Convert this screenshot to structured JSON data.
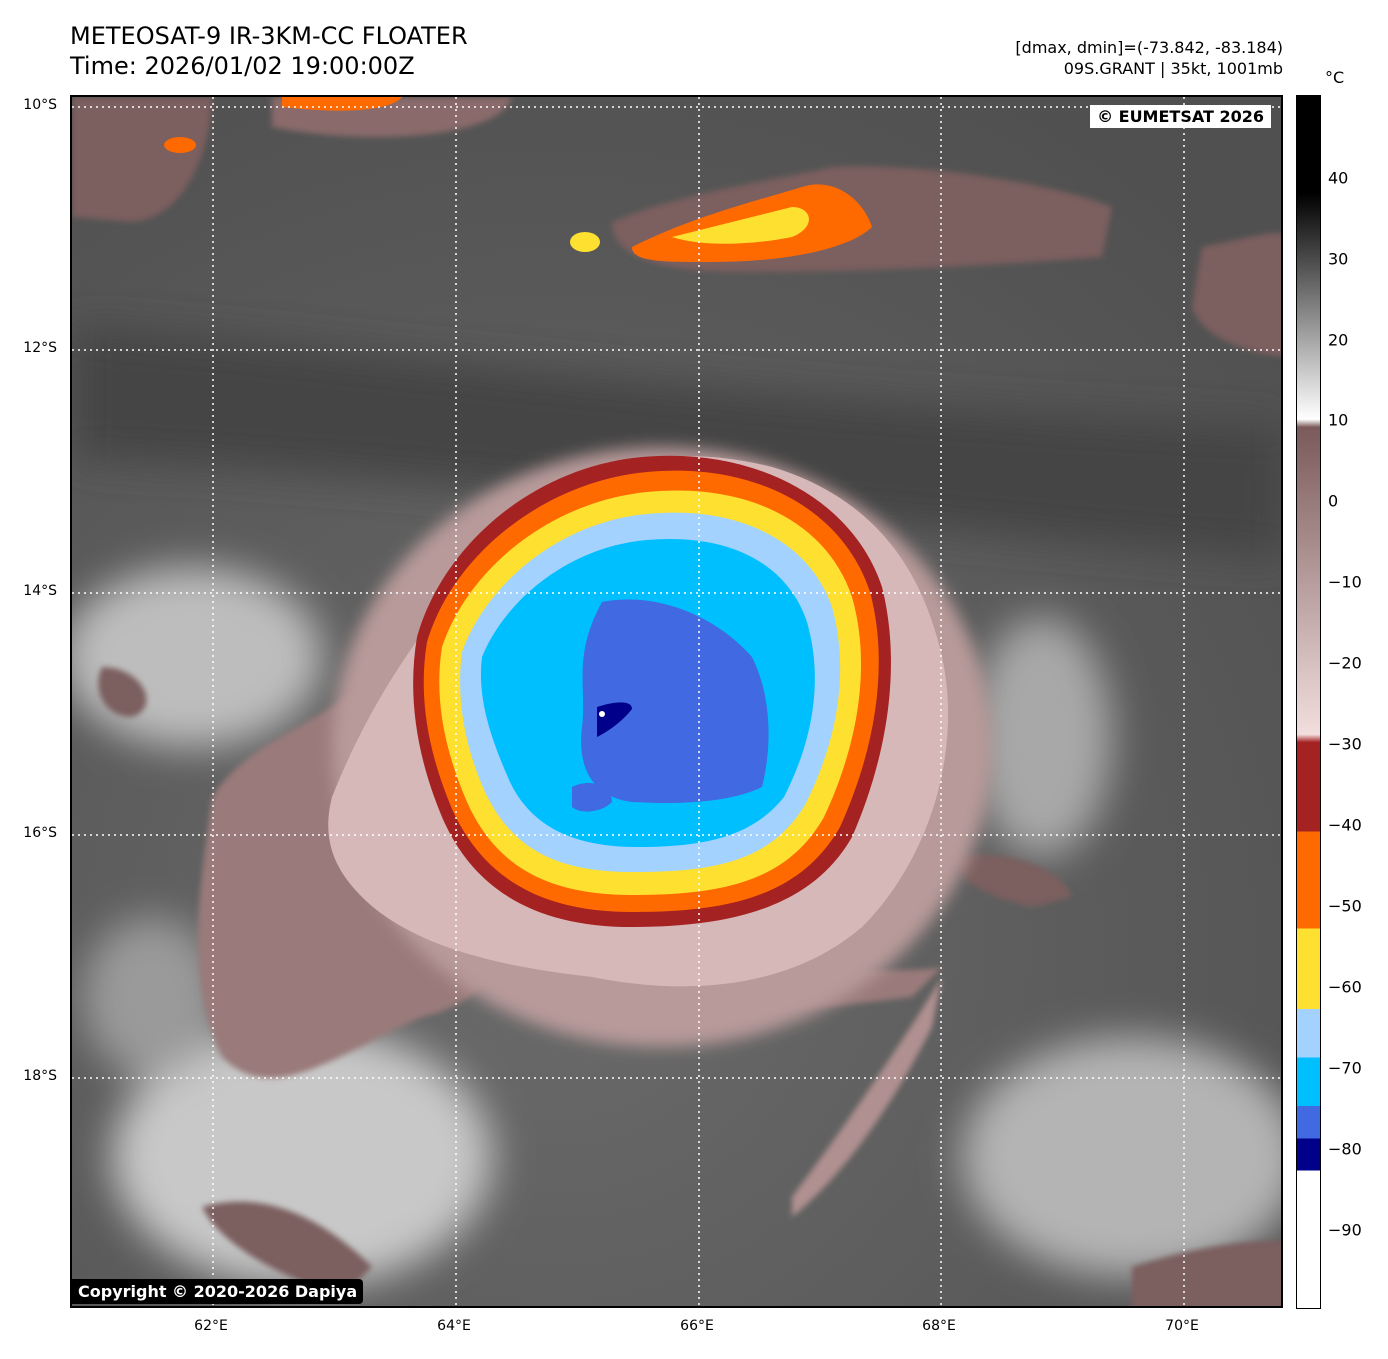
{
  "header": {
    "title_line1": "METEOSAT-9 IR-3KM-CC FLOATER",
    "title_line2": "Time: 2026/01/02 19:00:00Z",
    "meta_line1": "[dmax, dmin]=(-73.842, -83.184)",
    "meta_line2": "09S.GRANT | 35kt, 1001mb"
  },
  "map": {
    "lat_labels": [
      "10°S",
      "12°S",
      "14°S",
      "16°S",
      "18°S"
    ],
    "lon_labels": [
      "62°E",
      "64°E",
      "66°E",
      "68°E",
      "70°E"
    ],
    "watermark_top": "© EUMETSAT 2026",
    "watermark_bottom": "Copyright © 2020-2026 Dapiya"
  },
  "colorbar": {
    "unit": "°C",
    "range": [
      -100,
      50
    ],
    "ticks": [
      "40",
      "30",
      "20",
      "10",
      "0",
      "−10",
      "−20",
      "−30",
      "−40",
      "−50",
      "−60",
      "−70",
      "−80",
      "−90"
    ],
    "colors": {
      "warm_dark": "#000000",
      "warm_light": "#ffffff",
      "brown_dark": "#7a5a5a",
      "brown_light": "#f2dede",
      "red": "#a52222",
      "orange": "#ff6a00",
      "yellow": "#fde030",
      "light_blue": "#a3d2ff",
      "cyan": "#00bfff",
      "royal_blue": "#4169e1",
      "navy": "#00008b",
      "white_cold": "#ffffff"
    }
  }
}
